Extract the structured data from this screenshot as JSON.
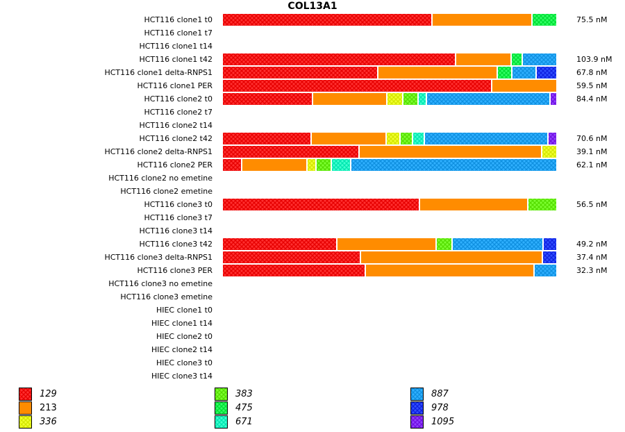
{
  "chart_data": {
    "type": "bar",
    "orientation": "horizontal-stacked-100",
    "title": "COL13A1",
    "value_unit": "percent of total",
    "legend_placement": "bottom",
    "legend": [
      {
        "key": "129",
        "color": "#e60000",
        "light": "#ff3030",
        "pattern": true,
        "italic": true
      },
      {
        "key": "213",
        "color": "#ff8c00",
        "light": "#ff8c00",
        "pattern": false,
        "italic": false
      },
      {
        "key": "336",
        "color": "#d4e600",
        "light": "#f0ff30",
        "pattern": true,
        "italic": true
      },
      {
        "key": "383",
        "color": "#55dd00",
        "light": "#7cff30",
        "pattern": true,
        "italic": true
      },
      {
        "key": "475",
        "color": "#00dd33",
        "light": "#30ff66",
        "pattern": true,
        "italic": true
      },
      {
        "key": "671",
        "color": "#00e6b0",
        "light": "#40ffd0",
        "pattern": true,
        "italic": true
      },
      {
        "key": "887",
        "color": "#1090e0",
        "light": "#30b0ff",
        "pattern": true,
        "italic": true
      },
      {
        "key": "978",
        "color": "#1020e0",
        "light": "#3050ff",
        "pattern": true,
        "italic": true
      },
      {
        "key": "1095",
        "color": "#7010e0",
        "light": "#9040ff",
        "pattern": true,
        "italic": true
      }
    ],
    "rows": [
      {
        "label": "HCT116 clone1 t0",
        "value": "75.5 nM",
        "segments": [
          {
            "key": "129",
            "pct": 63.0
          },
          {
            "key": "213",
            "pct": 30.0
          },
          {
            "key": "475",
            "pct": 7.0
          }
        ]
      },
      {
        "label": "HCT116 clone1 t7",
        "value": "",
        "segments": []
      },
      {
        "label": "HCT116 clone1 t14",
        "value": "",
        "segments": []
      },
      {
        "label": "HCT116 clone1 t42",
        "value": "103.9 nM",
        "segments": [
          {
            "key": "129",
            "pct": 70.1
          },
          {
            "key": "213",
            "pct": 16.5
          },
          {
            "key": "475",
            "pct": 3.4
          },
          {
            "key": "887",
            "pct": 10.0
          }
        ]
      },
      {
        "label": "HCT116 clone1 delta-RNPS1",
        "value": "67.8 nM",
        "segments": [
          {
            "key": "129",
            "pct": 46.6
          },
          {
            "key": "213",
            "pct": 36.0
          },
          {
            "key": "475",
            "pct": 4.2
          },
          {
            "key": "887",
            "pct": 7.3
          },
          {
            "key": "978",
            "pct": 5.9
          }
        ]
      },
      {
        "label": "HCT116 clone1 PER",
        "value": "59.5 nM",
        "segments": [
          {
            "key": "129",
            "pct": 80.8
          },
          {
            "key": "213",
            "pct": 19.2
          }
        ]
      },
      {
        "label": "HCT116 clone2 t0",
        "value": "84.4 nM",
        "segments": [
          {
            "key": "129",
            "pct": 27.0
          },
          {
            "key": "213",
            "pct": 22.3
          },
          {
            "key": "336",
            "pct": 4.8
          },
          {
            "key": "383",
            "pct": 4.6
          },
          {
            "key": "671",
            "pct": 2.5
          },
          {
            "key": "887",
            "pct": 37.1
          },
          {
            "key": "1095",
            "pct": 1.7
          }
        ]
      },
      {
        "label": "HCT116 clone2 t7",
        "value": "",
        "segments": []
      },
      {
        "label": "HCT116 clone2 t14",
        "value": "",
        "segments": []
      },
      {
        "label": "HCT116 clone2 t42",
        "value": "70.6 nM",
        "segments": [
          {
            "key": "129",
            "pct": 26.6
          },
          {
            "key": "213",
            "pct": 22.5
          },
          {
            "key": "336",
            "pct": 4.2
          },
          {
            "key": "383",
            "pct": 3.8
          },
          {
            "key": "671",
            "pct": 3.5
          },
          {
            "key": "887",
            "pct": 37.1
          },
          {
            "key": "1095",
            "pct": 2.3
          }
        ]
      },
      {
        "label": "HCT116 clone2 delta-RNPS1",
        "value": "39.1 nM",
        "segments": [
          {
            "key": "129",
            "pct": 41.0
          },
          {
            "key": "213",
            "pct": 54.8
          },
          {
            "key": "336",
            "pct": 4.2
          }
        ]
      },
      {
        "label": "HCT116 clone2 PER",
        "value": "62.1 nM",
        "segments": [
          {
            "key": "129",
            "pct": 5.8
          },
          {
            "key": "213",
            "pct": 19.6
          },
          {
            "key": "336",
            "pct": 2.7
          },
          {
            "key": "383",
            "pct": 4.6
          },
          {
            "key": "671",
            "pct": 5.8
          },
          {
            "key": "887",
            "pct": 61.5
          }
        ]
      },
      {
        "label": "HCT116 clone2 no emetine",
        "value": "",
        "segments": []
      },
      {
        "label": "HCT116 clone2 emetine",
        "value": "",
        "segments": []
      },
      {
        "label": "HCT116 clone3 t0",
        "value": "56.5 nM",
        "segments": [
          {
            "key": "129",
            "pct": 59.1
          },
          {
            "key": "213",
            "pct": 32.5
          },
          {
            "key": "383",
            "pct": 8.4
          }
        ]
      },
      {
        "label": "HCT116 clone3 t7",
        "value": "",
        "segments": []
      },
      {
        "label": "HCT116 clone3 t14",
        "value": "",
        "segments": []
      },
      {
        "label": "HCT116 clone3 t42",
        "value": "49.2 nM",
        "segments": [
          {
            "key": "129",
            "pct": 34.3
          },
          {
            "key": "213",
            "pct": 29.8
          },
          {
            "key": "383",
            "pct": 4.8
          },
          {
            "key": "887",
            "pct": 27.3
          },
          {
            "key": "978",
            "pct": 3.8
          }
        ]
      },
      {
        "label": "HCT116 clone3 delta-RNPS1",
        "value": "37.4 nM",
        "segments": [
          {
            "key": "129",
            "pct": 41.4
          },
          {
            "key": "213",
            "pct": 54.6
          },
          {
            "key": "978",
            "pct": 4.0
          }
        ]
      },
      {
        "label": "HCT116 clone3 PER",
        "value": "32.3 nM",
        "segments": [
          {
            "key": "129",
            "pct": 42.9
          },
          {
            "key": "213",
            "pct": 50.6
          },
          {
            "key": "887",
            "pct": 6.5
          }
        ]
      },
      {
        "label": "HCT116 clone3 no emetine",
        "value": "",
        "segments": []
      },
      {
        "label": "HCT116 clone3 emetine",
        "value": "",
        "segments": []
      },
      {
        "label": "HIEC clone1 t0",
        "value": "",
        "segments": []
      },
      {
        "label": "HIEC clone1 t14",
        "value": "",
        "segments": []
      },
      {
        "label": "HIEC clone2 t0",
        "value": "",
        "segments": []
      },
      {
        "label": "HIEC clone2 t14",
        "value": "",
        "segments": []
      },
      {
        "label": "HIEC clone3 t0",
        "value": "",
        "segments": []
      },
      {
        "label": "HIEC clone3 t14",
        "value": "",
        "segments": []
      }
    ]
  }
}
